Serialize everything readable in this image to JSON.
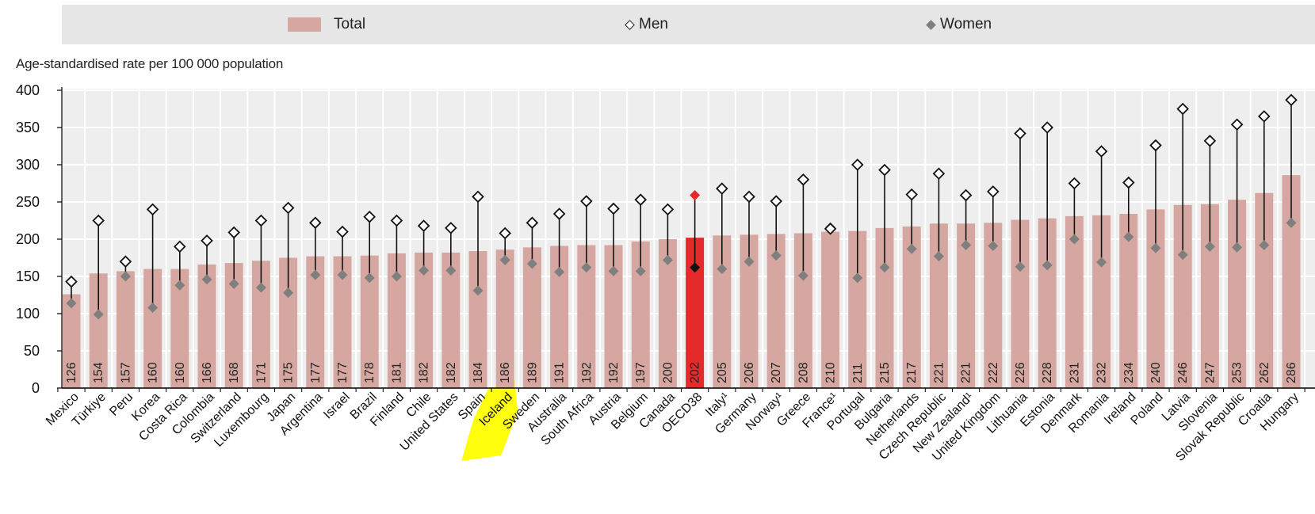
{
  "legend": {
    "total_label": "Total",
    "men_label": "Men",
    "women_label": "Women"
  },
  "colors": {
    "total_bar": "#d5a7a0",
    "highlight_bar": "#e32b2b",
    "men_marker_fill": "#ffffff",
    "women_marker_fill": "#7f7f7f",
    "highlight_women_marker": "#111111",
    "highlight_men_marker": "#e32b2b",
    "range_line": "#111111",
    "plot_background": "#eeeeee",
    "highlighter": "#ffff00"
  },
  "chart_data": {
    "type": "bar",
    "ylabel": "Age-standardised rate per 100 000 population",
    "ylim": [
      0,
      400
    ],
    "yticks": [
      0,
      50,
      100,
      150,
      200,
      250,
      300,
      350,
      400
    ],
    "grid": true,
    "highlighted_category": "OECD38",
    "marked_category": "Iceland",
    "categories": [
      "Mexico",
      "Türkiye",
      "Peru",
      "Korea",
      "Costa Rica",
      "Colombia",
      "Switzerland",
      "Luxembourg",
      "Japan",
      "Argentina",
      "Israel",
      "Brazil",
      "Finland",
      "Chile",
      "United States",
      "Spain",
      "Iceland",
      "Sweden",
      "Australia",
      "South Africa",
      "Austria",
      "Belgium",
      "Canada",
      "OECD38",
      "Italy¹",
      "Germany",
      "Norway¹",
      "Greece",
      "France¹",
      "Portugal",
      "Bulgaria",
      "Netherlands",
      "Czech Republic",
      "New Zealand¹",
      "United Kingdom",
      "Lithuania",
      "Estonia",
      "Denmark",
      "Romania",
      "Ireland",
      "Poland",
      "Latvia",
      "Slovenia",
      "Slovak Republic",
      "Croatia",
      "Hungary"
    ],
    "series": [
      {
        "name": "Total",
        "kind": "bar",
        "values": [
          126,
          154,
          157,
          160,
          160,
          166,
          168,
          171,
          175,
          177,
          177,
          178,
          181,
          182,
          182,
          184,
          186,
          189,
          191,
          192,
          192,
          197,
          200,
          202,
          205,
          206,
          207,
          208,
          210,
          211,
          215,
          217,
          221,
          221,
          222,
          226,
          228,
          231,
          232,
          234,
          240,
          246,
          247,
          253,
          262,
          286
        ]
      },
      {
        "name": "Men",
        "kind": "marker",
        "values": [
          143,
          225,
          170,
          240,
          190,
          198,
          209,
          225,
          242,
          222,
          210,
          230,
          225,
          218,
          215,
          257,
          208,
          222,
          234,
          251,
          241,
          253,
          240,
          259,
          268,
          257,
          251,
          280,
          214,
          300,
          293,
          260,
          288,
          259,
          264,
          342,
          350,
          275,
          318,
          276,
          326,
          375,
          332,
          354,
          365,
          387
        ]
      },
      {
        "name": "Women",
        "kind": "marker",
        "values": [
          114,
          99,
          150,
          108,
          138,
          146,
          140,
          135,
          128,
          152,
          152,
          148,
          150,
          158,
          158,
          131,
          172,
          167,
          156,
          162,
          157,
          157,
          172,
          162,
          160,
          170,
          178,
          151,
          216,
          148,
          162,
          187,
          177,
          192,
          191,
          163,
          165,
          200,
          169,
          203,
          188,
          179,
          190,
          189,
          192,
          222
        ]
      }
    ]
  }
}
